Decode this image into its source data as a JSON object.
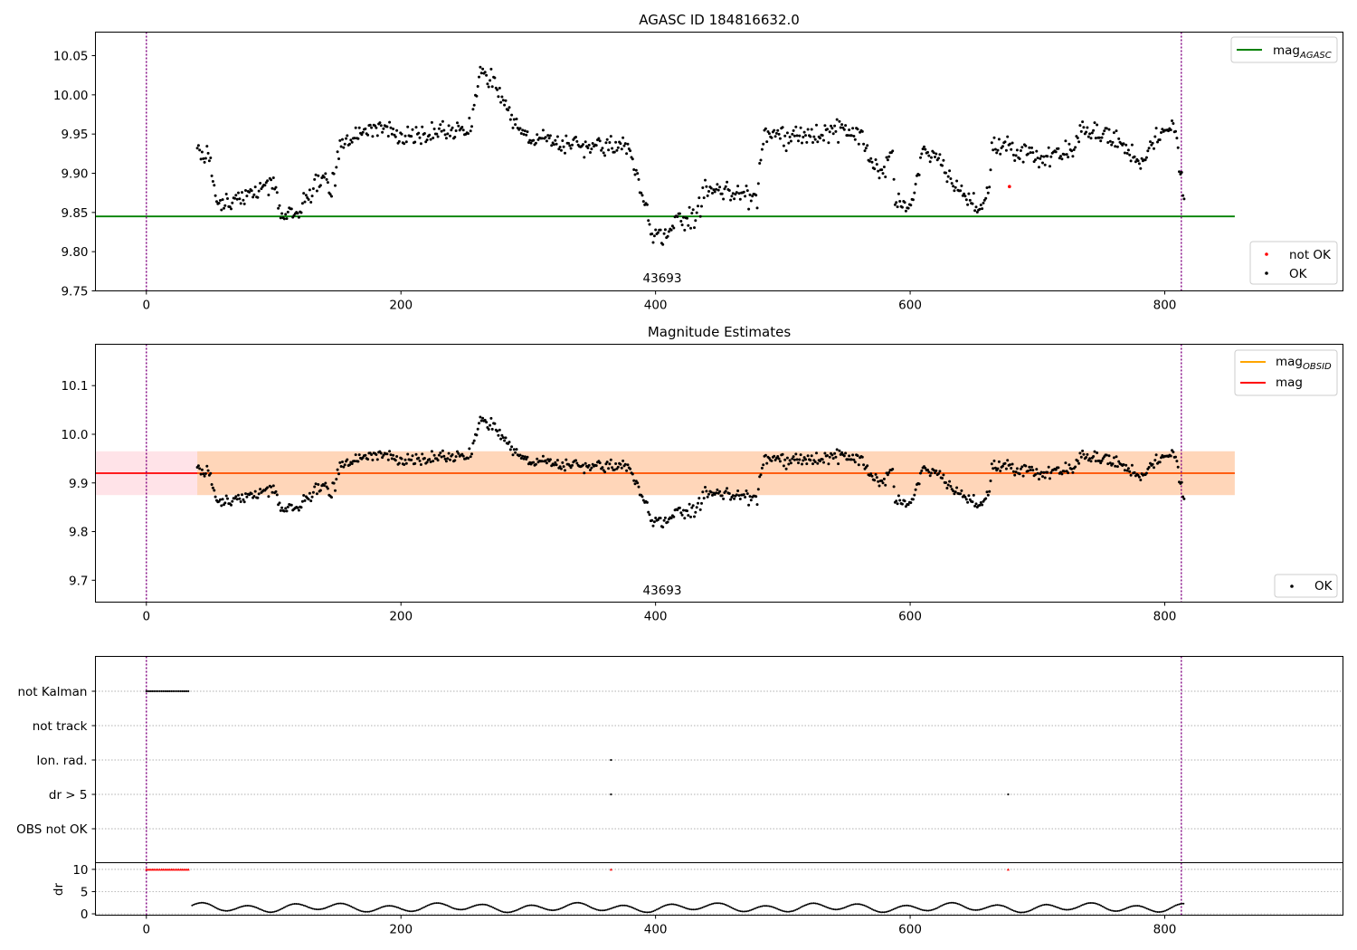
{
  "chart_data": [
    {
      "panel": "agasc",
      "type": "scatter",
      "title": "AGASC ID 184816632.0",
      "xlim": [
        -40,
        940
      ],
      "ylim": [
        9.75,
        10.08
      ],
      "xticks": [
        0,
        200,
        400,
        600,
        800
      ],
      "yticks": [
        9.75,
        9.8,
        9.85,
        9.9,
        9.95,
        10.0,
        10.05
      ],
      "ytick_format": 2,
      "vlines": [
        0,
        813
      ],
      "obsid_label": {
        "text": "43693",
        "x": 407
      },
      "hline": {
        "name": "mag",
        "sub": "AGASC",
        "y": 9.845,
        "xmin": -40,
        "xmax": 855,
        "color": "#008000"
      },
      "legend_lines": [
        {
          "name": "mag",
          "sub": "AGASC",
          "color": "#008000"
        }
      ],
      "legend_points": [
        {
          "name": "not OK",
          "color": "#ff0000"
        },
        {
          "name": "OK",
          "color": "#000000"
        }
      ],
      "not_ok_points": [
        {
          "x": 678,
          "y": 9.883
        }
      ]
    },
    {
      "panel": "estimates",
      "type": "scatter",
      "title": "Magnitude Estimates",
      "xlim": [
        -40,
        940
      ],
      "ylim": [
        9.655,
        10.185
      ],
      "xticks": [
        0,
        200,
        400,
        600,
        800
      ],
      "yticks": [
        9.7,
        9.8,
        9.9,
        10.0,
        10.1
      ],
      "ytick_format": 1,
      "vlines": [
        0,
        813
      ],
      "obsid_label": {
        "text": "43693",
        "x": 407
      },
      "mag": {
        "y": 9.92,
        "xmin": -40,
        "xmax": 855,
        "color": "#ff0000"
      },
      "band": {
        "ymin": 9.875,
        "ymax": 9.965,
        "xmin": -40,
        "xmax": 855
      },
      "obsid_band": {
        "ymin": 9.875,
        "ymax": 9.965,
        "xmin": 40,
        "xmax": 855
      },
      "legend_lines": [
        {
          "name": "mag",
          "sub": "OBSID",
          "color": "#ffa500"
        },
        {
          "name": "mag",
          "sub": "",
          "color": "#ff0000"
        }
      ],
      "legend_points": [
        {
          "name": "OK",
          "color": "#000000"
        }
      ]
    },
    {
      "panel": "flags",
      "type": "scatter",
      "categories": [
        "not Kalman",
        "not track",
        "Ion. rad.",
        "dr > 5",
        "OBS not OK"
      ],
      "xlim": [
        -40,
        940
      ],
      "vlines": [
        0,
        813
      ],
      "not_kalman_range": [
        0,
        34
      ],
      "ion_rad_points": [
        365
      ],
      "dr5_points": [
        365,
        677
      ]
    },
    {
      "panel": "dr",
      "type": "scatter",
      "ylabel": "dr",
      "xlim": [
        -40,
        940
      ],
      "ylim": [
        -0.3,
        11.5
      ],
      "yticks": [
        0,
        5,
        10
      ],
      "xticks": [
        0,
        200,
        400,
        600,
        800
      ],
      "clipped_value": 10,
      "clipped_ranges": [
        [
          0,
          34
        ]
      ],
      "clipped_points": [
        365,
        677
      ]
    }
  ]
}
